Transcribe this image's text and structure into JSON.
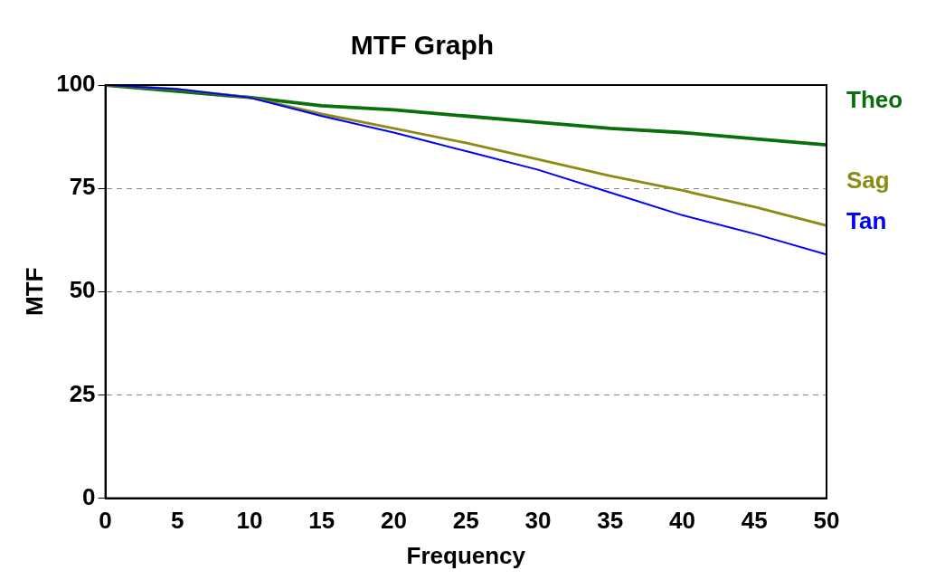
{
  "chart_data": {
    "type": "line",
    "title": "MTF Graph",
    "xlabel": "Frequency",
    "ylabel": "MTF",
    "x": [
      0,
      5,
      10,
      15,
      20,
      25,
      30,
      35,
      40,
      45,
      50
    ],
    "series": [
      {
        "name": "Theo",
        "color": "#0a6e0a",
        "values": [
          100,
          98.5,
          97,
          95,
          94,
          92.5,
          91,
          89.5,
          88.5,
          87,
          85.5
        ]
      },
      {
        "name": "Sag",
        "color": "#8c8c14",
        "values": [
          100,
          99,
          97,
          93,
          89.5,
          86,
          82,
          78,
          74.5,
          70.5,
          66
        ]
      },
      {
        "name": "Tan",
        "color": "#0000ff",
        "values": [
          100,
          99,
          97,
          92.5,
          88.5,
          84,
          79.5,
          74,
          68.5,
          64,
          59
        ]
      }
    ],
    "xlim": [
      0,
      50
    ],
    "xticks": [
      0,
      5,
      10,
      15,
      20,
      25,
      30,
      35,
      40,
      45,
      50
    ],
    "ylim": [
      0,
      100
    ],
    "yticks": [
      0,
      25,
      50,
      75,
      100
    ],
    "grid": "y",
    "legend": false,
    "marker": "none",
    "line_style": "solid"
  }
}
